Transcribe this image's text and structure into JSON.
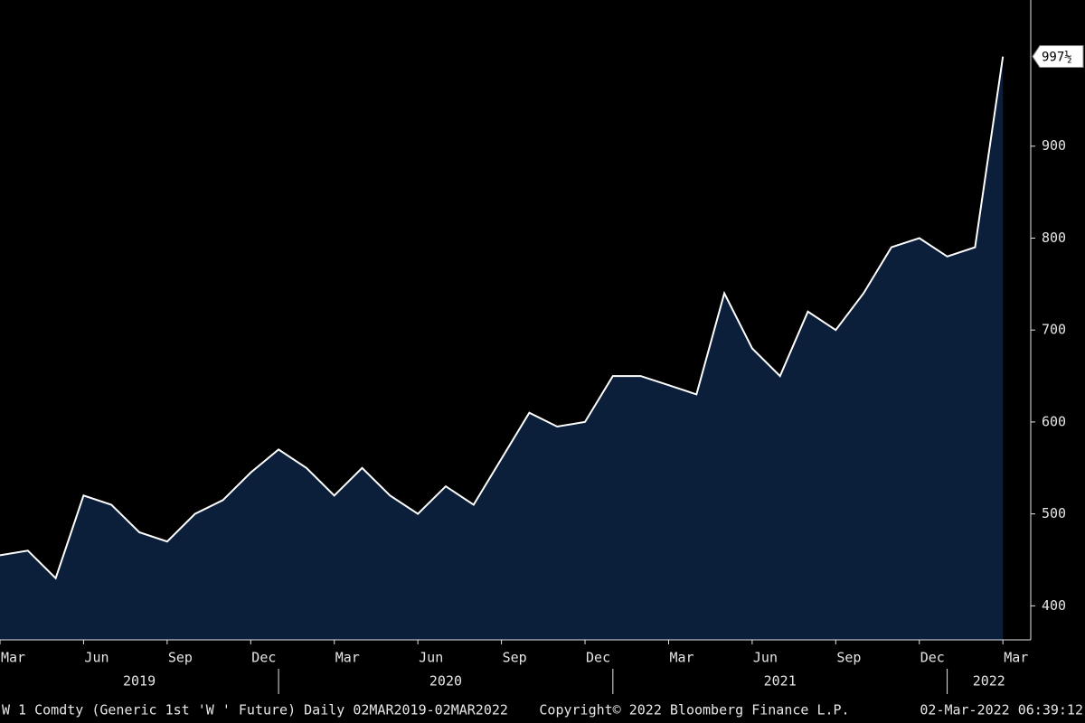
{
  "chart_data": {
    "type": "area",
    "x": [
      "2019-03",
      "2019-04",
      "2019-05",
      "2019-06",
      "2019-07",
      "2019-08",
      "2019-09",
      "2019-10",
      "2019-11",
      "2019-12",
      "2020-01",
      "2020-02",
      "2020-03",
      "2020-04",
      "2020-05",
      "2020-06",
      "2020-07",
      "2020-08",
      "2020-09",
      "2020-10",
      "2020-11",
      "2020-12",
      "2021-01",
      "2021-02",
      "2021-03",
      "2021-04",
      "2021-05",
      "2021-06",
      "2021-07",
      "2021-08",
      "2021-09",
      "2021-10",
      "2021-11",
      "2021-12",
      "2022-01",
      "2022-02",
      "2022-03"
    ],
    "series": [
      {
        "name": "W 1 Comdty",
        "color": "#ffffff",
        "fill": "#0b1f3a",
        "values": [
          455,
          460,
          430,
          520,
          510,
          480,
          470,
          500,
          515,
          545,
          570,
          550,
          520,
          550,
          520,
          500,
          530,
          510,
          560,
          610,
          595,
          600,
          650,
          650,
          640,
          630,
          740,
          680,
          650,
          720,
          700,
          740,
          790,
          800,
          780,
          790,
          997.5
        ]
      }
    ],
    "last_price": {
      "value": 997.5,
      "label": "997½"
    },
    "xlim": [
      "2019-03",
      "2022-04"
    ],
    "xticks": [
      {
        "value": "2019-03",
        "label": "Mar"
      },
      {
        "value": "2019-06",
        "label": "Jun"
      },
      {
        "value": "2019-09",
        "label": "Sep"
      },
      {
        "value": "2019-12",
        "label": "Dec"
      },
      {
        "value": "2020-03",
        "label": "Mar"
      },
      {
        "value": "2020-06",
        "label": "Jun"
      },
      {
        "value": "2020-09",
        "label": "Sep"
      },
      {
        "value": "2020-12",
        "label": "Dec"
      },
      {
        "value": "2021-03",
        "label": "Mar"
      },
      {
        "value": "2021-06",
        "label": "Jun"
      },
      {
        "value": "2021-09",
        "label": "Sep"
      },
      {
        "value": "2021-12",
        "label": "Dec"
      },
      {
        "value": "2022-03",
        "label": "Mar"
      }
    ],
    "years": [
      {
        "value": "2019-01",
        "label": "2019"
      },
      {
        "value": "2020-01",
        "label": "2020"
      },
      {
        "value": "2021-01",
        "label": "2021"
      },
      {
        "value": "2022-01",
        "label": "2022"
      }
    ],
    "ylim": [
      363,
      1059
    ],
    "yticks": [
      400,
      500,
      600,
      700,
      800,
      900
    ],
    "footer": {
      "left": "W 1 Comdty (Generic 1st 'W ' Future)  Daily 02MAR2019-02MAR2022",
      "center": "Copyright© 2022 Bloomberg Finance L.P.",
      "right": "02-Mar-2022 06:39:12"
    }
  }
}
